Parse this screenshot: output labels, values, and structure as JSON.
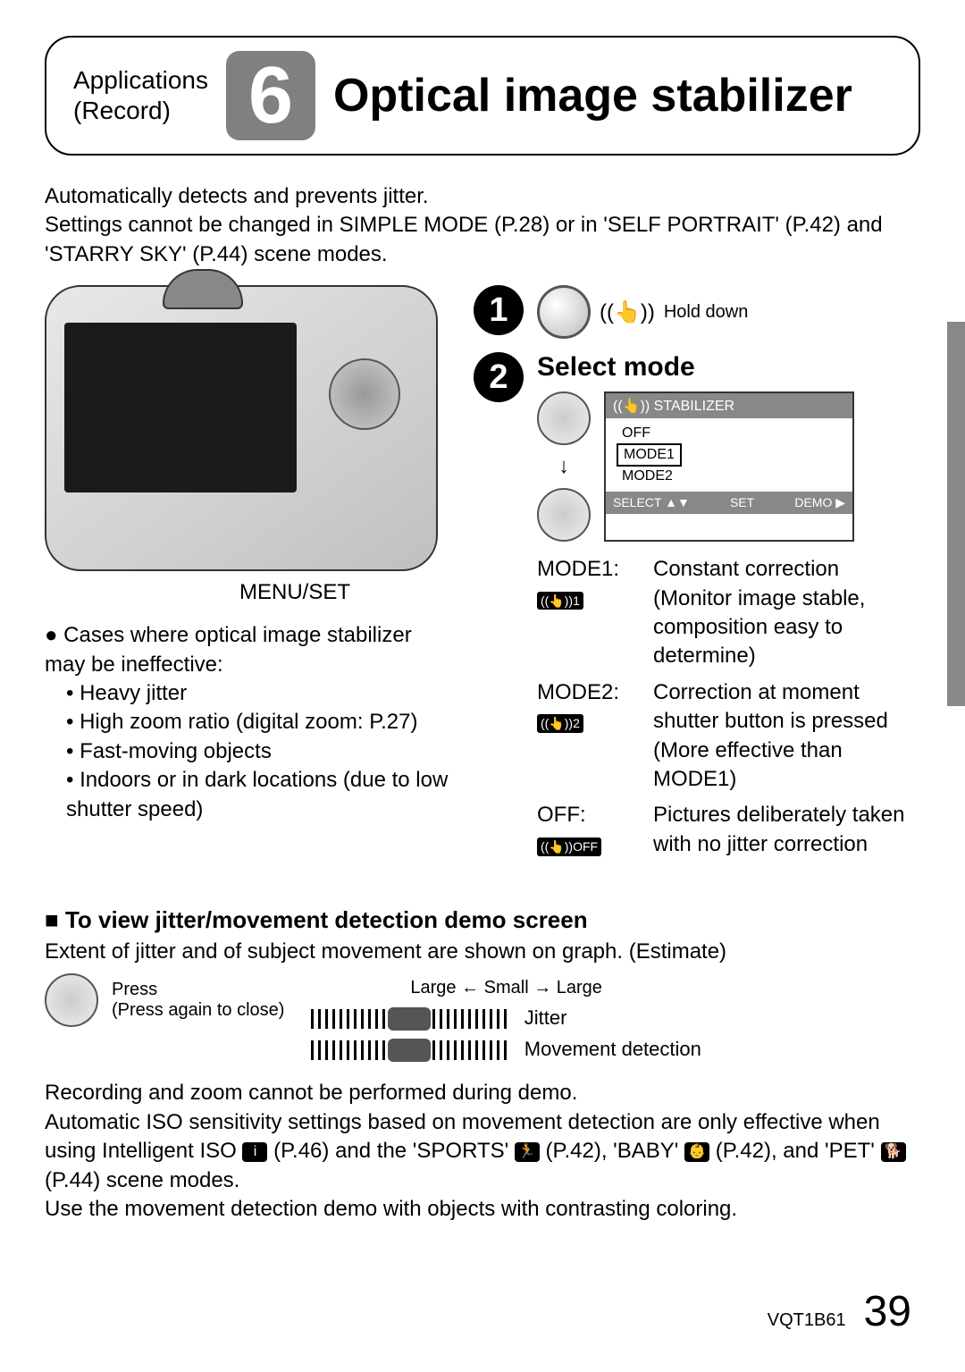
{
  "header": {
    "category_line1": "Applications",
    "category_line2": "(Record)",
    "chapter_number": "6",
    "title": "Optical image stabilizer"
  },
  "intro": "Automatically detects and prevents jitter.\nSettings cannot be changed in SIMPLE MODE (P.28) or in 'SELF PORTRAIT' (P.42) and 'STARRY SKY' (P.44) scene modes.",
  "left": {
    "menu_label": "MENU/SET",
    "ineffective_heading": "Cases where optical image stabilizer may be ineffective:",
    "bullets": [
      "Heavy jitter",
      "High zoom ratio (digital zoom: P.27)",
      "Fast-moving objects",
      "Indoors or in dark locations (due to low shutter speed)"
    ]
  },
  "steps": {
    "step1": {
      "num": "1",
      "hold_label": "Hold down",
      "ois_symbol": "((👆))"
    },
    "step2": {
      "num": "2",
      "title": "Select mode",
      "menu": {
        "header": "((👆)) STABILIZER",
        "items": [
          "OFF",
          "MODE1",
          "MODE2"
        ],
        "selected_index": 1,
        "footer_select": "SELECT ▲▼",
        "footer_set": "SET",
        "footer_demo": "DEMO ▶"
      },
      "modes": [
        {
          "label": "MODE1:",
          "icon": "((👆))1",
          "desc": "Constant correction (Monitor image stable, composition easy to determine)"
        },
        {
          "label": "MODE2:",
          "icon": "((👆))2",
          "desc": "Correction at moment shutter button is pressed (More effective than MODE1)"
        },
        {
          "label": "OFF:",
          "icon": "((👆))OFF",
          "desc": "Pictures deliberately taken with no jitter correction"
        }
      ]
    }
  },
  "demo": {
    "heading": "To view jitter/movement detection demo screen",
    "line": "Extent of jitter and of subject movement are shown on graph. (Estimate)",
    "press": "Press",
    "press_close": "(Press again to close)",
    "axis": "Large ← Small → Large",
    "jitter_label": "Jitter",
    "move_label": "Movement detection"
  },
  "notes": [
    "Recording and zoom cannot be performed during demo.",
    "Automatic ISO sensitivity settings based on movement detection are only effective when using Intelligent ISO ⬚ (P.46) and the 'SPORTS' ⬚ (P.42), 'BABY' ⬚ (P.42), and 'PET' ⬚ (P.44) scene modes.",
    "Use the movement detection demo with objects with contrasting coloring."
  ],
  "footer": {
    "doc_code": "VQT1B61",
    "page": "39"
  },
  "colors": {
    "chapter_bg": "#808080",
    "text": "#000000",
    "menu_header_bg": "#888888"
  }
}
